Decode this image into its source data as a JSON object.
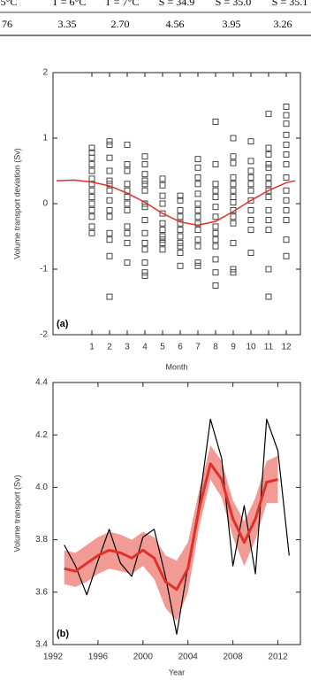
{
  "table": {
    "header": [
      "5°C",
      "T = 6°C",
      "T = 7°C",
      "S = 34.9",
      "S = 35.0",
      "S = 35.1"
    ],
    "row": [
      "76",
      "3.35",
      "2.70",
      "4.56",
      "3.95",
      "3.26"
    ]
  },
  "chart_data": [
    {
      "type": "scatter",
      "panel_label": "(a)",
      "x_label": "Month",
      "y_label": "Volume transport deviation (Sv)",
      "xlim": [
        -1.2,
        12.8
      ],
      "ylim": [
        -2,
        2
      ],
      "xticks": [
        1,
        2,
        3,
        4,
        5,
        6,
        7,
        8,
        9,
        10,
        11,
        12
      ],
      "yticks": [
        -2,
        -1,
        0,
        1,
        2
      ],
      "marker_color": "#333333",
      "groups": [
        {
          "x": 1,
          "values": [
            0.85,
            0.78,
            0.7,
            0.6,
            0.5,
            0.38,
            0.3,
            0.2,
            0.1,
            0,
            -0.1,
            -0.2,
            -0.35,
            -0.45
          ]
        },
        {
          "x": 2,
          "values": [
            0.95,
            0.9,
            0.7,
            0.5,
            0.35,
            0.3,
            0.2,
            0.05,
            -0.1,
            -0.2,
            -0.45,
            -0.55,
            -0.8,
            -1.42
          ]
        },
        {
          "x": 3,
          "values": [
            0.9,
            0.6,
            0.5,
            0.3,
            0.2,
            0.1,
            0,
            -0.1,
            -0.35,
            -0.45,
            -0.6,
            -0.9
          ]
        },
        {
          "x": 4,
          "values": [
            0.72,
            0.6,
            0.45,
            0.35,
            0.3,
            0.2,
            0,
            -0.05,
            -0.25,
            -0.45,
            -0.6,
            -0.7,
            -0.9,
            -1.05,
            -1.1
          ]
        },
        {
          "x": 5,
          "values": [
            0.38,
            0.28,
            0.12,
            0,
            -0.15,
            -0.3,
            -0.4,
            -0.5,
            -0.55,
            -0.6,
            -0.7
          ]
        },
        {
          "x": 6,
          "values": [
            0.12,
            0.05,
            -0.1,
            -0.2,
            -0.3,
            -0.4,
            -0.5,
            -0.6,
            -0.65,
            -0.75,
            -0.95
          ]
        },
        {
          "x": 7,
          "values": [
            0.68,
            0.55,
            0.4,
            0.3,
            0.15,
            0,
            -0.1,
            -0.2,
            -0.3,
            -0.4,
            -0.55,
            -0.65,
            -0.9,
            -0.95
          ]
        },
        {
          "x": 8,
          "values": [
            1.25,
            0.6,
            0.3,
            0.2,
            0.1,
            -0.05,
            -0.2,
            -0.35,
            -0.45,
            -0.55,
            -0.65,
            -0.85,
            -1.05,
            -1.25
          ]
        },
        {
          "x": 9,
          "values": [
            1,
            0.72,
            0.62,
            0.4,
            0.3,
            0.2,
            0.1,
            0.02,
            -0.1,
            -0.2,
            -0.3,
            -0.6,
            -1,
            -1.05
          ]
        },
        {
          "x": 10,
          "values": [
            0.95,
            0.65,
            0.5,
            0.4,
            0.3,
            0.2,
            0.05,
            -0.1,
            -0.25,
            -0.4,
            -0.75
          ]
        },
        {
          "x": 11,
          "values": [
            1.37,
            0.85,
            0.75,
            0.6,
            0.55,
            0.4,
            0.3,
            0.2,
            0.1,
            -0.1,
            -0.25,
            -0.4,
            -1,
            -1.42
          ]
        },
        {
          "x": 12,
          "values": [
            1.48,
            1.35,
            1.22,
            1.05,
            0.9,
            0.75,
            0.6,
            0.4,
            0.2,
            0.05,
            -0.1,
            -0.25,
            -0.55,
            -0.8
          ]
        }
      ],
      "curve": {
        "color": "#e0302a",
        "x": [
          -1,
          0,
          1,
          2,
          3,
          4,
          5,
          6,
          7,
          8,
          9,
          10,
          11,
          12,
          12.5
        ],
        "values": [
          0.35,
          0.36,
          0.33,
          0.27,
          0.16,
          0.02,
          -0.15,
          -0.28,
          -0.33,
          -0.27,
          -0.12,
          0.05,
          0.2,
          0.32,
          0.35
        ]
      }
    },
    {
      "type": "line",
      "panel_label": "(b)",
      "x_label": "Year",
      "y_label": "Volume transport (Sv)",
      "xlim": [
        1992,
        2014
      ],
      "ylim": [
        3.4,
        4.4
      ],
      "xticks": [
        1992,
        1996,
        2000,
        2004,
        2008,
        2012
      ],
      "yticks": [
        3.4,
        3.6,
        3.8,
        {
          "value": 4,
          "label": "4.0"
        },
        4.2,
        4.4
      ],
      "x": [
        1993,
        1994,
        1995,
        1996,
        1997,
        1998,
        1999,
        2000,
        2001,
        2002,
        2003,
        2004,
        2005,
        2006,
        2007,
        2008,
        2009,
        2010,
        2011,
        2012,
        2013
      ],
      "band": {
        "color": "#f08a82",
        "lower": [
          3.63,
          3.62,
          3.64,
          3.67,
          3.69,
          3.68,
          3.67,
          3.7,
          3.65,
          3.54,
          3.49,
          3.6,
          3.85,
          4.03,
          3.96,
          3.81,
          3.7,
          3.8,
          3.94,
          3.94,
          null
        ],
        "upper": [
          3.76,
          3.75,
          3.78,
          3.81,
          3.83,
          3.82,
          3.8,
          3.83,
          3.81,
          3.74,
          3.72,
          3.79,
          3.99,
          4.16,
          4.1,
          3.95,
          3.87,
          3.96,
          4.1,
          4.12,
          null
        ]
      },
      "series": [
        {
          "color": "#000000",
          "width": 1.2,
          "values": [
            3.78,
            3.7,
            3.59,
            3.72,
            3.84,
            3.71,
            3.66,
            3.81,
            3.84,
            3.66,
            3.44,
            3.7,
            3.94,
            4.26,
            4.11,
            3.7,
            3.93,
            3.67,
            4.26,
            4.14,
            3.74
          ]
        },
        {
          "color": "#e0302a",
          "width": 3,
          "values": [
            3.69,
            3.68,
            3.71,
            3.74,
            3.76,
            3.75,
            3.73,
            3.76,
            3.73,
            3.64,
            3.61,
            3.69,
            3.92,
            4.09,
            4.03,
            3.88,
            3.79,
            3.88,
            4.02,
            4.03,
            null
          ]
        }
      ]
    }
  ]
}
